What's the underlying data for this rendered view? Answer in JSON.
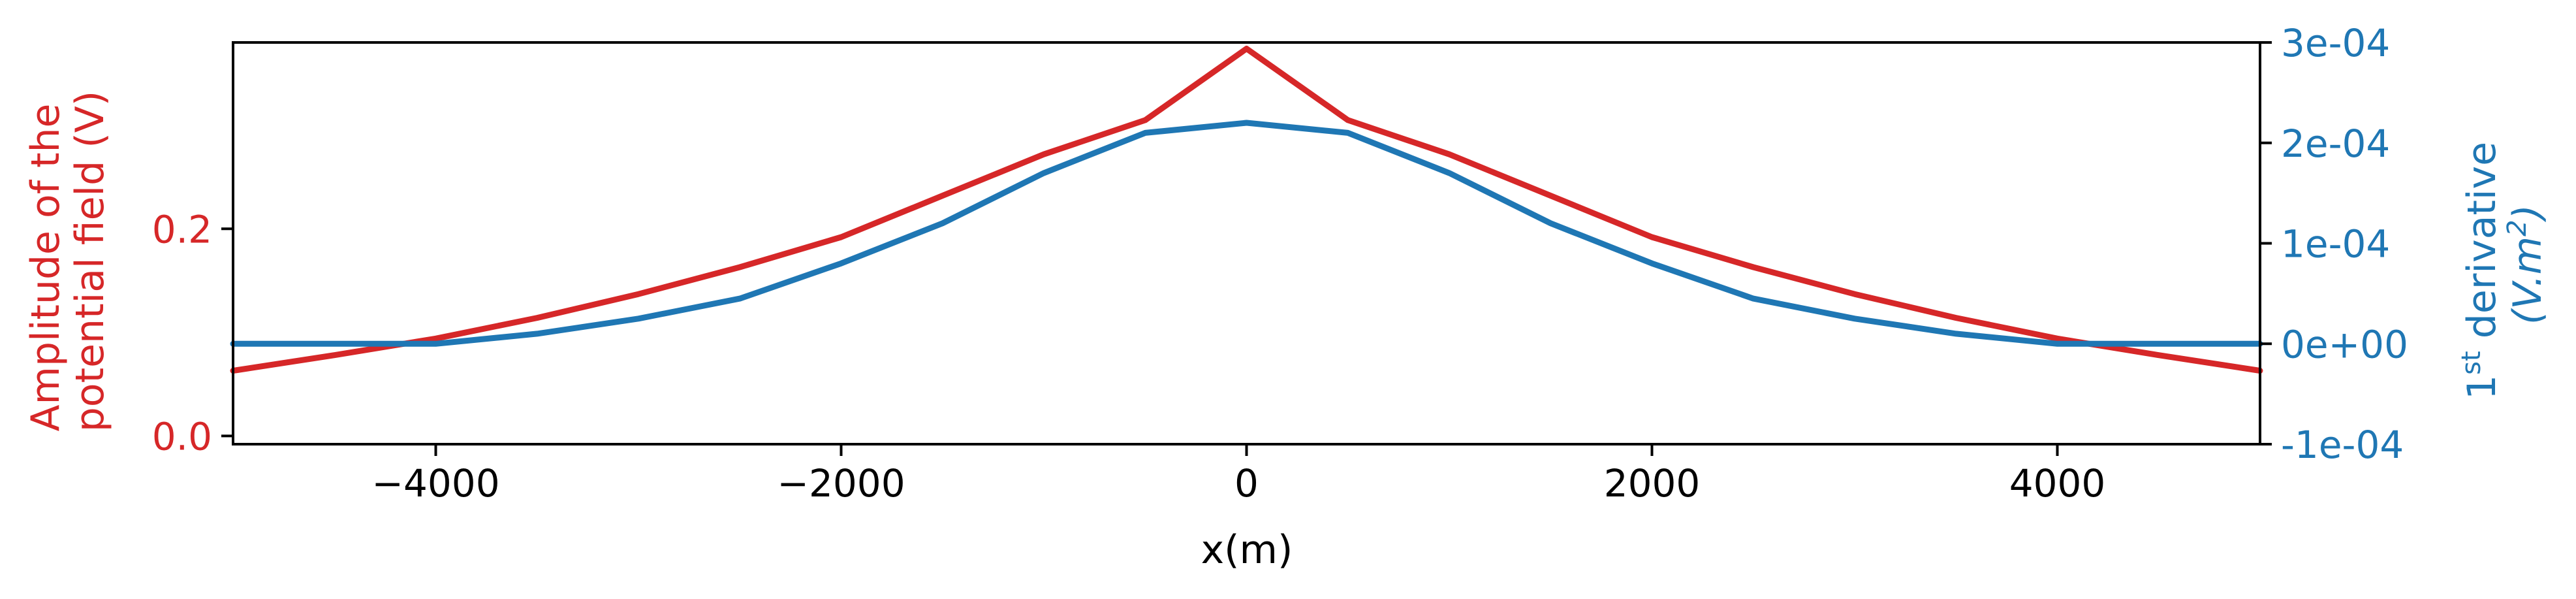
{
  "chart_data": {
    "type": "line",
    "xlabel": "x(m)",
    "xlim": [
      -5000,
      5000
    ],
    "x_ticks": [
      -4000,
      -2000,
      0,
      2000,
      4000
    ],
    "x_tick_labels": [
      "−4000",
      "−2000",
      "0",
      "2000",
      "4000"
    ],
    "y_left": {
      "label_lines": [
        "Amplitude of the",
        "potential field (V)"
      ],
      "ylim": [
        -0.008,
        0.38
      ],
      "ticks": [
        0.0,
        0.2
      ],
      "tick_labels": [
        "0.0",
        "0.2"
      ],
      "color": "#d62728"
    },
    "y_right": {
      "label_line1": "derivative",
      "label_prefix": "1",
      "label_sup": "st",
      "label_line2_a": "(V.m",
      "label_line2_sup": "2",
      "label_line2_b": ")",
      "ylim": [
        -0.0001,
        0.0003
      ],
      "ticks": [
        -0.0001,
        0.0,
        0.0001,
        0.0002,
        0.0003
      ],
      "tick_labels": [
        "-1e-04",
        "0e+00",
        "1e-04",
        "2e-04",
        "3e-04"
      ],
      "color": "#1f77b4"
    },
    "series": [
      {
        "axis": "left",
        "color": "#d62728",
        "x": [
          -5000,
          -4500,
          -4000,
          -3500,
          -3000,
          -2500,
          -2000,
          -1500,
          -1000,
          -500,
          0,
          500,
          1000,
          1500,
          2000,
          2500,
          3000,
          3500,
          4000,
          4500,
          5000
        ],
        "values": [
          0.063,
          0.078,
          0.094,
          0.114,
          0.137,
          0.163,
          0.192,
          0.232,
          0.272,
          0.305,
          0.374,
          0.305,
          0.272,
          0.232,
          0.192,
          0.163,
          0.137,
          0.114,
          0.094,
          0.078,
          0.063
        ]
      },
      {
        "axis": "right",
        "color": "#1f77b4",
        "x": [
          -5000,
          -4500,
          -4000,
          -3500,
          -3000,
          -2500,
          -2000,
          -1500,
          -1000,
          -500,
          0,
          500,
          1000,
          1500,
          2000,
          2500,
          3000,
          3500,
          4000,
          4500,
          5000
        ],
        "values": [
          0.0,
          0.0,
          0.0,
          1e-05,
          2.5e-05,
          4.5e-05,
          8e-05,
          0.00012,
          0.00017,
          0.00021,
          0.00022,
          0.00021,
          0.00017,
          0.00012,
          8e-05,
          4.5e-05,
          2.5e-05,
          1e-05,
          0.0,
          0.0,
          0.0
        ]
      }
    ]
  }
}
